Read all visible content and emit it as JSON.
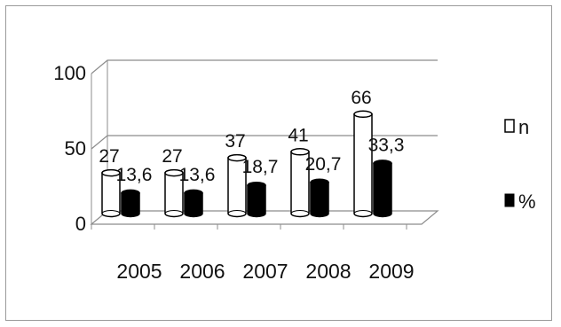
{
  "chart_data": {
    "type": "bar",
    "style": "3d-cylinder",
    "categories": [
      "2005",
      "2006",
      "2007",
      "2008",
      "2009"
    ],
    "series": [
      {
        "name": "n",
        "values": [
          27,
          27,
          37,
          41,
          66
        ],
        "labels": [
          "27",
          "27",
          "37",
          "41",
          "66"
        ],
        "fill": "#ffffff"
      },
      {
        "name": "%",
        "values": [
          13.6,
          13.6,
          18.7,
          20.7,
          33.3
        ],
        "labels": [
          "13,6",
          "13,6",
          "18,7",
          "20,7",
          "33,3"
        ],
        "fill": "#000000"
      }
    ],
    "yticks": [
      "0",
      "50",
      "100"
    ],
    "ylim": [
      0,
      100
    ],
    "grid": true,
    "legend_position": "right",
    "title": "",
    "xlabel": "",
    "ylabel": ""
  }
}
